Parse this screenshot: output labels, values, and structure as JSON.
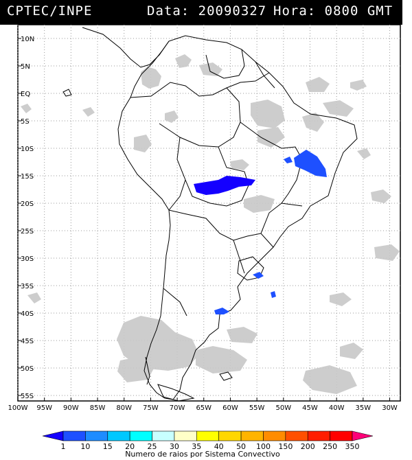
{
  "header": {
    "org": "CPTEC/INPE",
    "date_text": "Data: 20090327",
    "time_text": "Hora: 0800 GMT"
  },
  "map": {
    "lon_labels": [
      "100W",
      "95W",
      "90W",
      "85W",
      "80W",
      "75W",
      "70W",
      "65W",
      "60W",
      "55W",
      "50W",
      "45W",
      "40W",
      "35W",
      "30W"
    ],
    "lat_labels": [
      "10N",
      "5N",
      "EQ",
      "5S",
      "10S",
      "15S",
      "20S",
      "25S",
      "30S",
      "35S",
      "40S",
      "45S",
      "50S",
      "55S"
    ],
    "lon_range": [
      -100,
      -28
    ],
    "lat_range": [
      -56,
      12.5
    ],
    "grid": "dotted",
    "satellite_cloud_color": "#c8c8c8",
    "coastline_color": "#000000"
  },
  "colorbar": {
    "labels": [
      "1",
      "10",
      "15",
      "20",
      "25",
      "30",
      "35",
      "40",
      "50",
      "100",
      "150",
      "200",
      "250",
      "350"
    ],
    "colors": [
      "#1400ff",
      "#1e50ff",
      "#1e8cff",
      "#00c8ff",
      "#00ffff",
      "#c8ffff",
      "#ffffc8",
      "#ffff00",
      "#ffd700",
      "#ffb400",
      "#ff8c00",
      "#ff5000",
      "#ff1e00",
      "#ff0000",
      "#ff0078"
    ],
    "caption": "Numero de raios por Sistema Convectivo"
  }
}
